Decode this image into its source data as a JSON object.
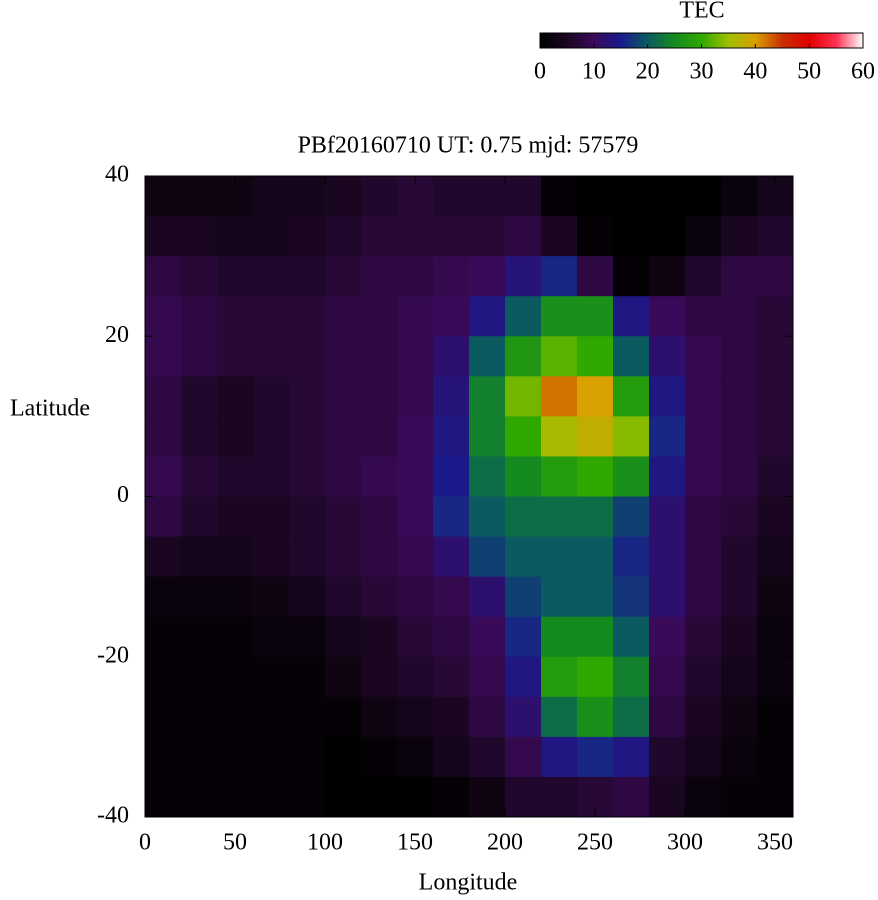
{
  "chart_data": {
    "type": "heatmap",
    "title": "PBf20160710  UT: 0.75  mjd: 57579",
    "xlabel": "Longitude",
    "ylabel": "Latitude",
    "colorbar_label": "TEC",
    "x": [
      10,
      30,
      50,
      70,
      90,
      110,
      130,
      150,
      170,
      190,
      210,
      230,
      250,
      270,
      290,
      310,
      330,
      350
    ],
    "y": [
      37.5,
      32.5,
      27.5,
      22.5,
      17.5,
      12.5,
      7.5,
      2.5,
      -2.5,
      -7.5,
      -12.5,
      -17.5,
      -22.5,
      -27.5,
      -32.5,
      -37.5
    ],
    "z": [
      [
        3,
        3,
        3,
        4,
        4,
        5,
        6,
        7,
        6,
        6,
        6,
        1,
        0,
        0,
        0,
        0,
        2,
        4
      ],
      [
        5,
        5,
        4,
        4,
        5,
        6,
        7,
        7,
        7,
        7,
        8,
        5,
        1,
        0,
        0,
        2,
        5,
        6
      ],
      [
        8,
        7,
        6,
        6,
        6,
        7,
        8,
        8,
        9,
        10,
        13,
        16,
        8,
        1,
        3,
        6,
        8,
        8
      ],
      [
        9,
        8,
        7,
        7,
        7,
        8,
        8,
        9,
        10,
        14,
        20,
        26,
        26,
        14,
        10,
        8,
        8,
        7
      ],
      [
        9,
        8,
        7,
        7,
        7,
        8,
        8,
        9,
        12,
        20,
        27,
        32,
        30,
        20,
        12,
        9,
        8,
        7
      ],
      [
        8,
        6,
        5,
        6,
        7,
        8,
        8,
        9,
        13,
        24,
        33,
        42,
        40,
        28,
        14,
        9,
        8,
        7
      ],
      [
        8,
        6,
        5,
        6,
        7,
        8,
        8,
        10,
        14,
        24,
        30,
        36,
        38,
        34,
        16,
        9,
        8,
        7
      ],
      [
        9,
        7,
        6,
        6,
        7,
        8,
        9,
        10,
        15,
        22,
        25,
        28,
        30,
        26,
        14,
        9,
        8,
        6
      ],
      [
        8,
        6,
        5,
        5,
        6,
        7,
        8,
        10,
        16,
        20,
        22,
        22,
        22,
        18,
        12,
        8,
        7,
        5
      ],
      [
        5,
        4,
        4,
        5,
        6,
        7,
        8,
        9,
        12,
        18,
        20,
        20,
        20,
        16,
        12,
        8,
        6,
        4
      ],
      [
        2,
        2,
        2,
        3,
        4,
        6,
        7,
        8,
        9,
        12,
        18,
        20,
        20,
        17,
        12,
        8,
        6,
        3
      ],
      [
        1,
        1,
        1,
        2,
        2,
        4,
        5,
        7,
        8,
        10,
        16,
        25,
        25,
        20,
        10,
        7,
        5,
        2
      ],
      [
        1,
        1,
        1,
        1,
        1,
        3,
        5,
        6,
        7,
        9,
        14,
        28,
        30,
        24,
        9,
        6,
        4,
        2
      ],
      [
        1,
        1,
        1,
        1,
        1,
        1,
        3,
        4,
        5,
        8,
        12,
        22,
        26,
        22,
        8,
        5,
        3,
        1
      ],
      [
        1,
        1,
        1,
        1,
        1,
        0,
        1,
        2,
        4,
        6,
        9,
        14,
        16,
        14,
        6,
        4,
        2,
        1
      ],
      [
        1,
        1,
        1,
        1,
        1,
        0,
        0,
        0,
        1,
        3,
        6,
        6,
        7,
        8,
        5,
        2,
        1,
        1
      ]
    ],
    "xlim": [
      0,
      360
    ],
    "xticks": [
      0,
      50,
      100,
      150,
      200,
      250,
      300,
      350
    ],
    "ylim": [
      -40,
      40
    ],
    "yticks": [
      -40,
      -20,
      0,
      20,
      40
    ],
    "clim": [
      0,
      60
    ],
    "cticks": [
      0,
      10,
      20,
      30,
      40,
      50,
      60
    ],
    "colors": [
      "#000000",
      "#1a0620",
      "#3a0a5a",
      "#1a1a8c",
      "#0a5a60",
      "#158a20",
      "#30a800",
      "#9ec000",
      "#d8a000",
      "#c83000",
      "#e00000",
      "#ff3050",
      "#ffffff"
    ]
  }
}
